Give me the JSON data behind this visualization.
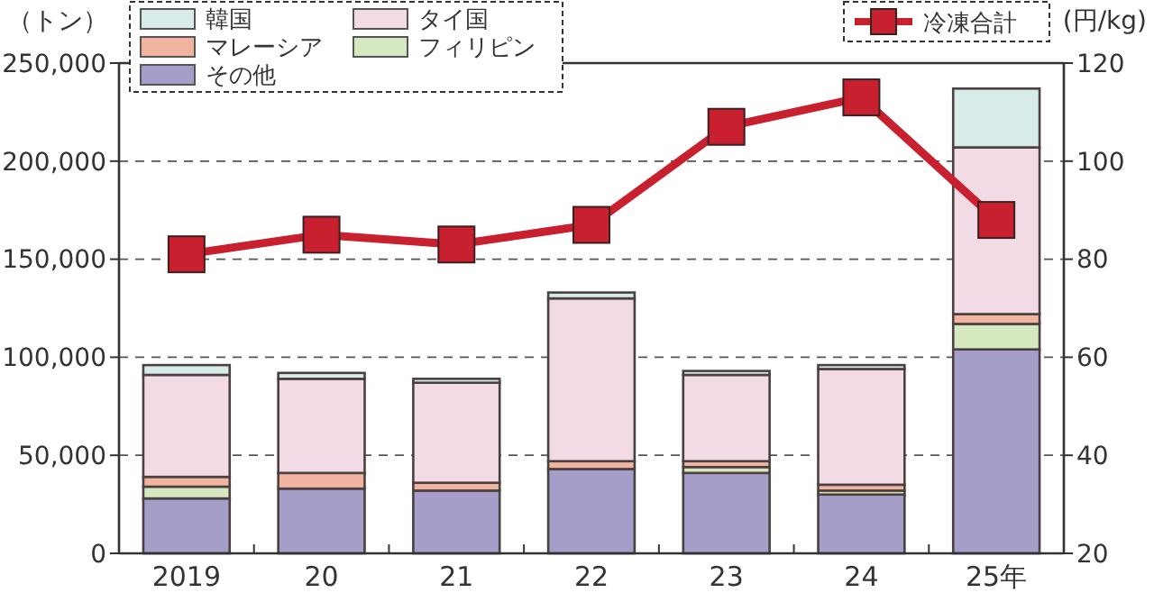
{
  "chart_data": {
    "type": "bar",
    "stacked": true,
    "categories": [
      "2019",
      "20",
      "21",
      "22",
      "23",
      "24",
      "25年"
    ],
    "ylabel": "（トン）",
    "y2label": "(円/kg)",
    "ylim": [
      0,
      250000
    ],
    "yticks": [
      {
        "value": 0,
        "label": "0"
      },
      {
        "value": 50000,
        "label": "50,000"
      },
      {
        "value": 100000,
        "label": "100,000"
      },
      {
        "value": 150000,
        "label": "150,000"
      },
      {
        "value": 200000,
        "label": "200,000"
      },
      {
        "value": 250000,
        "label": "250,000"
      }
    ],
    "y2lim": [
      20,
      120
    ],
    "y2ticks": [
      20,
      40,
      60,
      80,
      100,
      120
    ],
    "grid": "y",
    "legend": "top",
    "series": [
      {
        "name": "その他",
        "color": "#a59ec9",
        "values": [
          28000,
          33000,
          32000,
          43000,
          41000,
          30000,
          104000
        ]
      },
      {
        "name": "フィリピン",
        "color": "#d5e8c0",
        "values": [
          6000,
          null,
          null,
          null,
          3000,
          2000,
          13000
        ]
      },
      {
        "name": "マレーシア",
        "color": "#f0b4a0",
        "values": [
          5000,
          8000,
          4000,
          4000,
          3000,
          3000,
          5000
        ]
      },
      {
        "name": "タイ国",
        "color": "#f3dbe5",
        "values": [
          52000,
          48000,
          51000,
          83000,
          44000,
          59000,
          85000
        ]
      },
      {
        "name": "韓国",
        "color": "#d7ece9",
        "values": [
          5000,
          3000,
          2000,
          3000,
          2000,
          2000,
          30000
        ]
      },
      {
        "name": "冷凍合計",
        "type": "line",
        "axis": "y2",
        "marker": "square",
        "color": "#c8202f",
        "values": [
          81,
          85,
          83,
          87,
          107,
          113,
          88
        ]
      }
    ]
  }
}
